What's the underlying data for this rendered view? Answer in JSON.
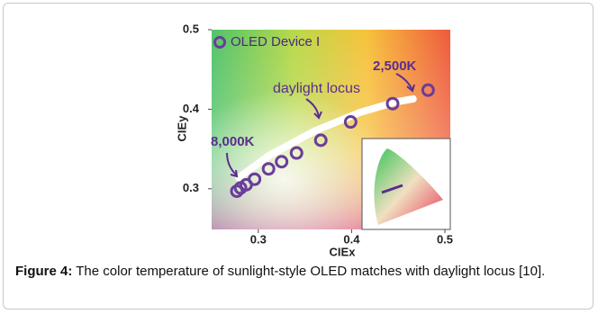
{
  "chart_data": {
    "type": "scatter",
    "x_label": "CIEx",
    "y_label": "CIEy",
    "xlim": [
      0.25,
      0.5
    ],
    "ylim": [
      0.25,
      0.5
    ],
    "xticks": [
      0.3,
      0.4,
      0.5
    ],
    "yticks": [
      0.3,
      0.4,
      0.5
    ],
    "series": [
      {
        "name": "OLED Device I",
        "color": "#6a3d9a",
        "x": [
          0.277,
          0.281,
          0.287,
          0.296,
          0.311,
          0.325,
          0.341,
          0.367,
          0.399,
          0.444,
          0.482
        ],
        "values": [
          0.297,
          0.301,
          0.305,
          0.312,
          0.325,
          0.334,
          0.345,
          0.361,
          0.384,
          0.407,
          0.424
        ]
      }
    ],
    "locus": {
      "label": "daylight locus",
      "color": "#ffffff",
      "x": [
        0.279,
        0.312,
        0.361,
        0.409,
        0.447,
        0.466
      ],
      "values": [
        0.314,
        0.342,
        0.373,
        0.396,
        0.409,
        0.413
      ]
    },
    "annotations": [
      "2,500K",
      "8,000K"
    ]
  },
  "caption": {
    "label": "Figure 4:",
    "text": "The color temperature of sunlight-style OLED matches with daylight locus [10]."
  }
}
